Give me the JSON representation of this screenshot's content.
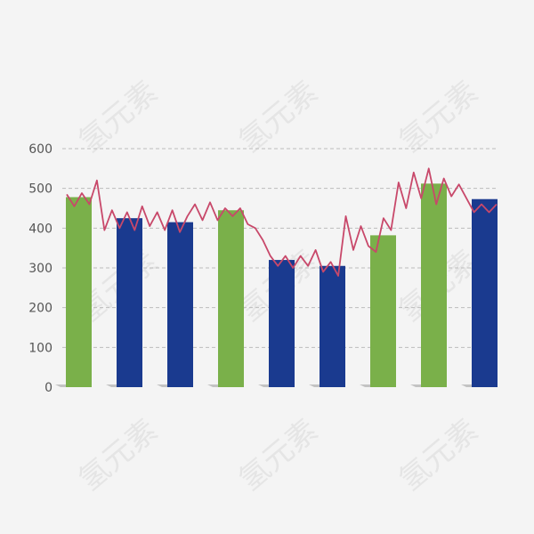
{
  "chart_data": {
    "type": "bar",
    "title": "",
    "xlabel": "",
    "ylabel": "",
    "ylim": [
      0,
      600
    ],
    "y_ticks": [
      "0",
      "100",
      "200",
      "300",
      "400",
      "500",
      "600"
    ],
    "grid": true,
    "grid_style": "dashed",
    "values": [
      478,
      425,
      415,
      445,
      320,
      305,
      382,
      512,
      473
    ],
    "bar_colors": [
      "#7ab04a",
      "#1a3a8f",
      "#1a3a8f",
      "#7ab04a",
      "#1a3a8f",
      "#1a3a8f",
      "#7ab04a",
      "#7ab04a",
      "#1a3a8f"
    ],
    "line": {
      "color": "#c8486a",
      "values": [
        485,
        455,
        488,
        460,
        520,
        395,
        445,
        400,
        440,
        395,
        455,
        405,
        440,
        395,
        445,
        390,
        430,
        460,
        420,
        465,
        420,
        450,
        430,
        450,
        410,
        400,
        370,
        330,
        305,
        330,
        300,
        330,
        305,
        345,
        290,
        315,
        280,
        430,
        345,
        405,
        355,
        340,
        425,
        395,
        515,
        450,
        540,
        475,
        550,
        460,
        525,
        480,
        510,
        475,
        440,
        460,
        440,
        460
      ]
    },
    "watermark": "氢元素"
  }
}
